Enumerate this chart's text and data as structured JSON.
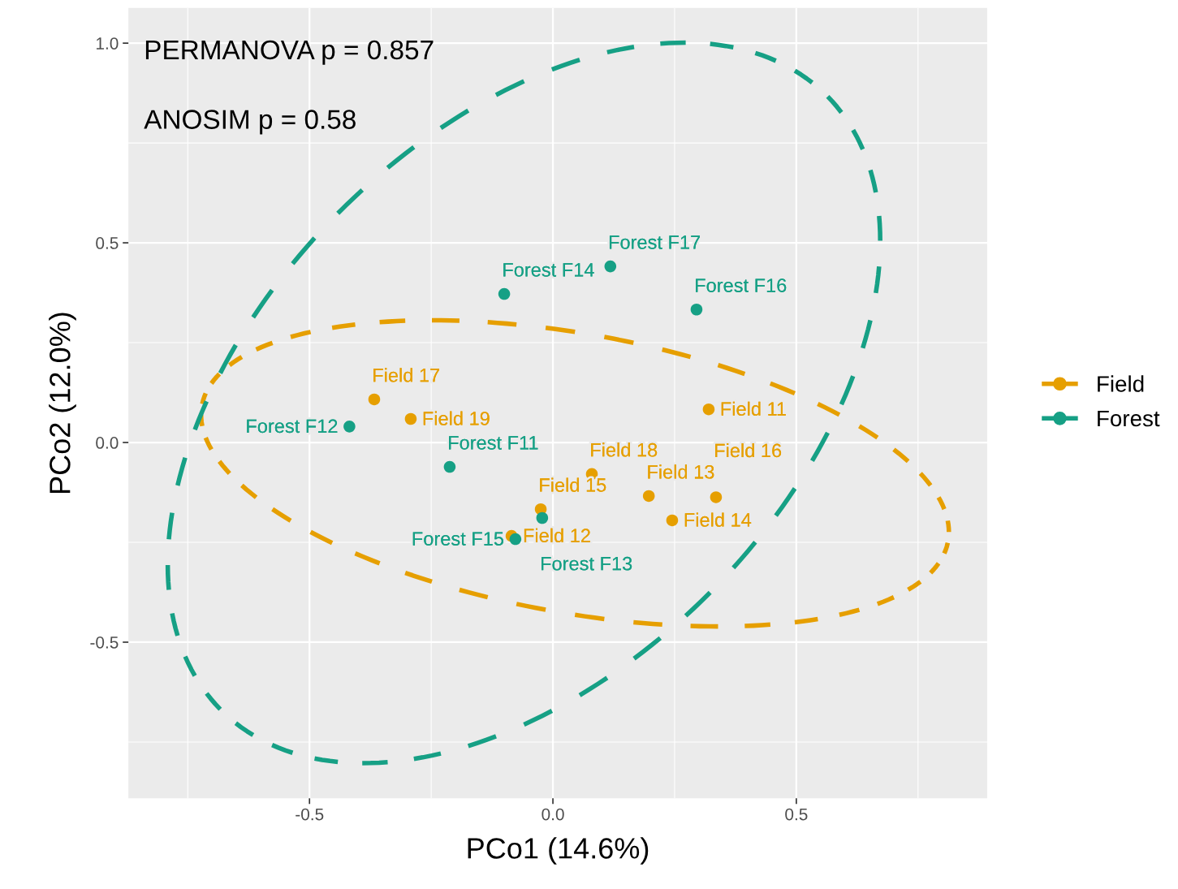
{
  "chart_data": {
    "type": "scatter",
    "xlabel": "PCo1 (14.6%)",
    "ylabel": "PCo2 (12.0%)",
    "xlim": [
      -0.872,
      0.892
    ],
    "ylim": [
      -0.891,
      1.088
    ],
    "xticks": [
      {
        "value": -0.5,
        "label": "-0.5"
      },
      {
        "value": 0,
        "label": "0.0"
      },
      {
        "value": 0.5,
        "label": "0.5"
      }
    ],
    "yticks": [
      {
        "value": -0.5,
        "label": "-0.5"
      },
      {
        "value": 0,
        "label": "0.0"
      },
      {
        "value": 0.5,
        "label": "0.5"
      },
      {
        "value": 1.0,
        "label": "1.0"
      }
    ],
    "grid": true,
    "legend": "right",
    "marker": "circle",
    "annotations": [
      "PERMANOVA p = 0.857",
      "ANOSIM p = 0.58"
    ],
    "series": [
      {
        "name": "Field",
        "color": "#e69f00",
        "x": [
          0.32,
          -0.085,
          0.197,
          0.245,
          -0.025,
          0.335,
          -0.367,
          0.08,
          -0.292
        ],
        "values": [
          0.083,
          -0.234,
          -0.134,
          -0.195,
          -0.167,
          -0.137,
          0.108,
          -0.079,
          0.059
        ],
        "value_labels": [
          "Field 11",
          "Field 12",
          "Field 13",
          "Field 14",
          "Field 15",
          "Field 16",
          "Field 17",
          "Field 18",
          "Field 19"
        ]
      },
      {
        "name": "Forest",
        "color": "#16a085",
        "x": [
          -0.212,
          -0.418,
          -0.022,
          -0.1,
          -0.077,
          0.295,
          0.118
        ],
        "values": [
          -0.061,
          0.04,
          -0.189,
          0.372,
          -0.242,
          0.333,
          0.441
        ],
        "value_labels": [
          "Forest F11",
          "Forest F12",
          "Forest F13",
          "Forest F14",
          "Forest F15",
          "Forest F16",
          "Forest F17"
        ]
      }
    ]
  }
}
